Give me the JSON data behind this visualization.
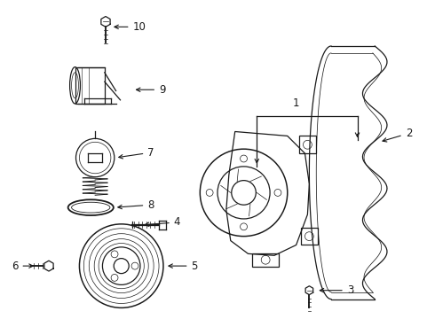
{
  "bg_color": "#ffffff",
  "line_color": "#1a1a1a",
  "figsize": [
    4.9,
    3.6
  ],
  "dpi": 100,
  "lw": 0.9
}
